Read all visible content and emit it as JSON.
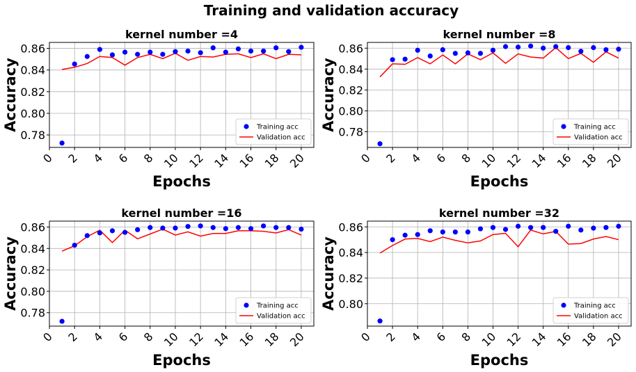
{
  "figure": {
    "title": "Training and validation accuracy"
  },
  "legend": {
    "training_label": "Training acc",
    "validation_label": "Validation acc",
    "placement": "lower-right"
  },
  "colors": {
    "training": "#0000ff",
    "validation": "#ff0000",
    "grid": "#b0b0b0"
  },
  "chart_data": [
    {
      "type": "scatter+line",
      "title": "kernel number =4",
      "xlabel": "Epochs",
      "ylabel": "Accuracy",
      "xlim": [
        0,
        21
      ],
      "ylim": [
        0.7685,
        0.8655
      ],
      "xticks": [
        0,
        2,
        4,
        6,
        8,
        10,
        12,
        14,
        16,
        18,
        20
      ],
      "yticks": [
        0.78,
        0.8,
        0.82,
        0.84,
        0.86
      ],
      "ytick_labels": [
        "0.78",
        "0.80",
        "0.82",
        "0.84",
        "0.86"
      ],
      "grid": true,
      "x": [
        1,
        2,
        3,
        4,
        5,
        6,
        7,
        8,
        9,
        10,
        11,
        12,
        13,
        14,
        15,
        16,
        17,
        18,
        19,
        20
      ],
      "series": [
        {
          "name": "Training acc",
          "kind": "scatter",
          "values": [
            0.7725,
            0.8455,
            0.8525,
            0.859,
            0.854,
            0.8565,
            0.8545,
            0.8565,
            0.8545,
            0.857,
            0.8575,
            0.856,
            0.8605,
            0.8565,
            0.8595,
            0.8575,
            0.8575,
            0.8605,
            0.857,
            0.861
          ]
        },
        {
          "name": "Validation acc",
          "kind": "line",
          "values": [
            0.8405,
            0.8425,
            0.846,
            0.8525,
            0.8515,
            0.8445,
            0.8515,
            0.8545,
            0.8505,
            0.8555,
            0.849,
            0.8525,
            0.852,
            0.8545,
            0.855,
            0.8515,
            0.855,
            0.8505,
            0.8545,
            0.854
          ]
        }
      ]
    },
    {
      "type": "scatter+line",
      "title": "kernel number =8",
      "xlabel": "Epochs",
      "ylabel": "Accuracy",
      "xlim": [
        0,
        21
      ],
      "ylim": [
        0.765,
        0.8655
      ],
      "xticks": [
        0,
        2,
        4,
        6,
        8,
        10,
        12,
        14,
        16,
        18,
        20
      ],
      "yticks": [
        0.78,
        0.8,
        0.82,
        0.84,
        0.86
      ],
      "ytick_labels": [
        "0.78",
        "0.80",
        "0.82",
        "0.84",
        "0.86"
      ],
      "grid": true,
      "x": [
        1,
        2,
        3,
        4,
        5,
        6,
        7,
        8,
        9,
        10,
        11,
        12,
        13,
        14,
        15,
        16,
        17,
        18,
        19,
        20
      ],
      "series": [
        {
          "name": "Training acc",
          "kind": "scatter",
          "values": [
            0.7685,
            0.849,
            0.8495,
            0.858,
            0.8525,
            0.8585,
            0.855,
            0.8555,
            0.855,
            0.858,
            0.8615,
            0.861,
            0.862,
            0.86,
            0.8615,
            0.8605,
            0.857,
            0.8605,
            0.8585,
            0.859
          ]
        },
        {
          "name": "Validation acc",
          "kind": "line",
          "values": [
            0.8325,
            0.845,
            0.8445,
            0.851,
            0.845,
            0.8535,
            0.845,
            0.8545,
            0.849,
            0.8555,
            0.8455,
            0.8545,
            0.8515,
            0.8505,
            0.8605,
            0.85,
            0.855,
            0.8465,
            0.8565,
            0.8505
          ]
        }
      ]
    },
    {
      "type": "scatter+line",
      "title": "kernel number =16",
      "xlabel": "Epochs",
      "ylabel": "Accuracy",
      "xlim": [
        0,
        21
      ],
      "ylim": [
        0.7675,
        0.8655
      ],
      "xticks": [
        0,
        2,
        4,
        6,
        8,
        10,
        12,
        14,
        16,
        18,
        20
      ],
      "yticks": [
        0.78,
        0.8,
        0.82,
        0.84,
        0.86
      ],
      "ytick_labels": [
        "0.78",
        "0.80",
        "0.82",
        "0.84",
        "0.86"
      ],
      "grid": true,
      "x": [
        1,
        2,
        3,
        4,
        5,
        6,
        7,
        8,
        9,
        10,
        11,
        12,
        13,
        14,
        15,
        16,
        17,
        18,
        19,
        20
      ],
      "series": [
        {
          "name": "Training acc",
          "kind": "scatter",
          "values": [
            0.772,
            0.843,
            0.852,
            0.8545,
            0.8565,
            0.855,
            0.8575,
            0.8595,
            0.859,
            0.859,
            0.8605,
            0.861,
            0.8595,
            0.8585,
            0.8595,
            0.8585,
            0.861,
            0.8595,
            0.8595,
            0.858
          ]
        },
        {
          "name": "Validation acc",
          "kind": "line",
          "values": [
            0.8375,
            0.8425,
            0.851,
            0.857,
            0.8455,
            0.857,
            0.849,
            0.8535,
            0.858,
            0.8525,
            0.8555,
            0.8515,
            0.854,
            0.854,
            0.8565,
            0.8565,
            0.856,
            0.8545,
            0.8575,
            0.8525
          ]
        }
      ]
    },
    {
      "type": "scatter+line",
      "title": "kernel number =32",
      "xlabel": "Epochs",
      "ylabel": "Accuracy",
      "xlim": [
        0,
        21
      ],
      "ylim": [
        0.7825,
        0.8645
      ],
      "xticks": [
        0,
        2,
        4,
        6,
        8,
        10,
        12,
        14,
        16,
        18,
        20
      ],
      "yticks": [
        0.8,
        0.82,
        0.84,
        0.86
      ],
      "ytick_labels": [
        "0.80",
        "0.82",
        "0.84",
        "0.86"
      ],
      "grid": true,
      "x": [
        1,
        2,
        3,
        4,
        5,
        6,
        7,
        8,
        9,
        10,
        11,
        12,
        13,
        14,
        15,
        16,
        17,
        18,
        19,
        20
      ],
      "series": [
        {
          "name": "Training acc",
          "kind": "scatter",
          "values": [
            0.7865,
            0.85,
            0.8535,
            0.854,
            0.857,
            0.856,
            0.856,
            0.856,
            0.8585,
            0.8595,
            0.858,
            0.8605,
            0.8595,
            0.8595,
            0.8565,
            0.8605,
            0.8575,
            0.859,
            0.8595,
            0.8605
          ]
        },
        {
          "name": "Validation acc",
          "kind": "line",
          "values": [
            0.8395,
            0.8455,
            0.8505,
            0.851,
            0.8485,
            0.852,
            0.8495,
            0.8475,
            0.849,
            0.854,
            0.855,
            0.8445,
            0.8575,
            0.8545,
            0.8565,
            0.8465,
            0.847,
            0.8505,
            0.8525,
            0.85
          ]
        }
      ]
    }
  ]
}
